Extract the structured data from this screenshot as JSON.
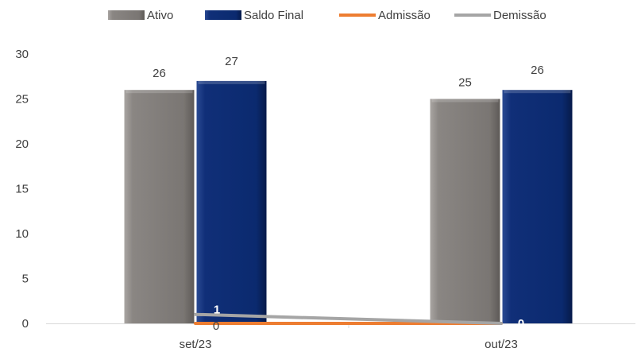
{
  "chart_data": {
    "type": "bar",
    "categories": [
      "set/23",
      "out/23"
    ],
    "series": [
      {
        "name": "Ativo",
        "kind": "bar",
        "color": "#7f7b78",
        "values": [
          26,
          25
        ]
      },
      {
        "name": "Saldo Final",
        "kind": "bar",
        "color": "#0b2a6f",
        "values": [
          27,
          26
        ]
      },
      {
        "name": "Admissão",
        "kind": "line",
        "color": "#ed7d31",
        "values": [
          0,
          0
        ]
      },
      {
        "name": "Demissão",
        "kind": "line",
        "color": "#a5a5a5",
        "values": [
          1,
          0
        ]
      }
    ],
    "y_ticks": [
      "0",
      "5",
      "10",
      "15",
      "20",
      "25",
      "30"
    ],
    "ylim": [
      0,
      30
    ],
    "legend_position": "top",
    "title": "",
    "xlabel": "",
    "ylabel": "",
    "grid": false
  }
}
